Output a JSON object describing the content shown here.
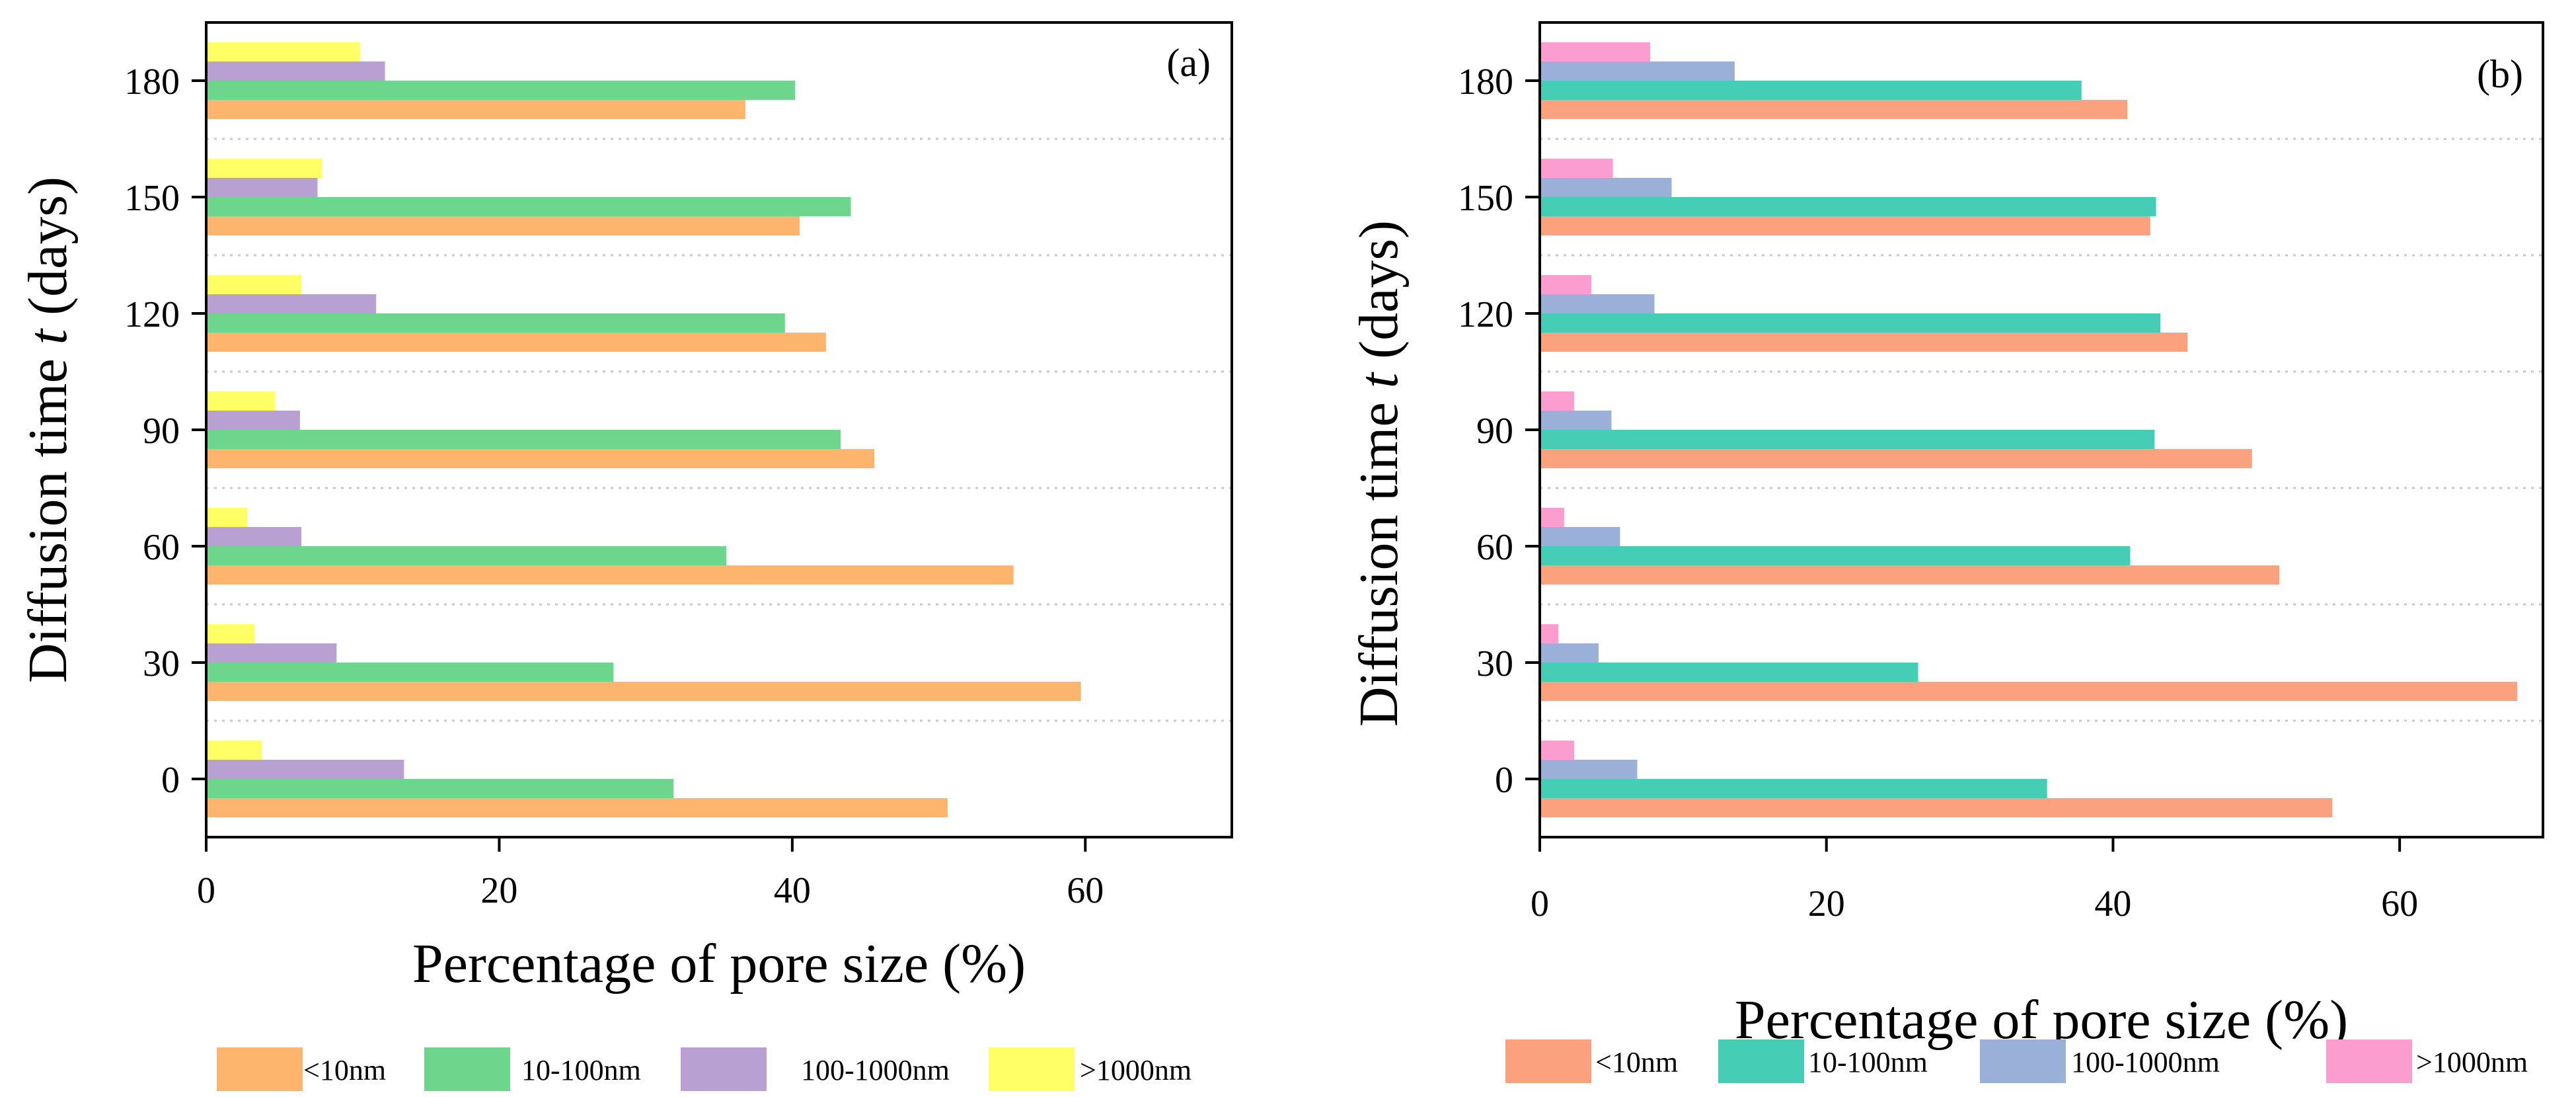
{
  "chart_data": [
    {
      "type": "bar",
      "orientation": "horizontal",
      "panel_label": "(a)",
      "xlabel": "Percentage of pore size (%)",
      "ylabel": {
        "prefix": "Diffusion time ",
        "var": "t",
        "suffix": " (days)"
      },
      "xlim": [
        0,
        70
      ],
      "xticks": [
        "0",
        "20",
        "40",
        "60"
      ],
      "xtick_values": [
        0,
        20,
        40,
        60
      ],
      "categories": [
        "0",
        "30",
        "60",
        "90",
        "120",
        "150",
        "180"
      ],
      "grid": "horizontal dotted",
      "legend_position": "bottom",
      "series": [
        {
          "name": "<10nm",
          "color": "#FDB56D",
          "values": [
            50.6,
            59.7,
            55.1,
            45.6,
            42.3,
            40.5,
            36.8
          ]
        },
        {
          "name": "10-100nm",
          "color": "#6DD68C",
          "values": [
            31.9,
            27.8,
            35.5,
            43.3,
            39.5,
            44.0,
            40.2
          ]
        },
        {
          "name": "100-1000nm",
          "color": "#B9A0D2",
          "values": [
            13.5,
            8.9,
            6.5,
            6.4,
            11.6,
            7.6,
            12.2
          ]
        },
        {
          "name": ">1000nm",
          "color": "#FFFF66",
          "values": [
            3.8,
            3.3,
            2.8,
            4.7,
            6.5,
            7.9,
            10.5
          ]
        }
      ]
    },
    {
      "type": "bar",
      "orientation": "horizontal",
      "panel_label": "(b)",
      "xlabel": "Percentage of pore size (%)",
      "ylabel": {
        "prefix": "Diffusion time ",
        "var": "t",
        "suffix": " (days)"
      },
      "xlim": [
        0,
        70
      ],
      "xticks": [
        "0",
        "20",
        "40",
        "60"
      ],
      "xtick_values": [
        0,
        20,
        40,
        60
      ],
      "categories": [
        "0",
        "30",
        "60",
        "90",
        "120",
        "150",
        "180"
      ],
      "grid": "horizontal dotted",
      "legend_position": "bottom",
      "series": [
        {
          "name": "<10nm",
          "color": "#FBA17E",
          "values": [
            55.3,
            68.2,
            51.6,
            49.7,
            45.2,
            42.6,
            41.0
          ]
        },
        {
          "name": "10-100nm",
          "color": "#45CDB5",
          "values": [
            35.4,
            26.4,
            41.2,
            42.9,
            43.3,
            43.0,
            37.8
          ]
        },
        {
          "name": "100-1000nm",
          "color": "#9AB0D8",
          "values": [
            6.8,
            4.1,
            5.6,
            5.0,
            8.0,
            9.2,
            13.6
          ]
        },
        {
          "name": ">1000nm",
          "color": "#FC9DD0",
          "values": [
            2.4,
            1.3,
            1.7,
            2.4,
            3.6,
            5.1,
            7.7
          ]
        }
      ]
    }
  ]
}
